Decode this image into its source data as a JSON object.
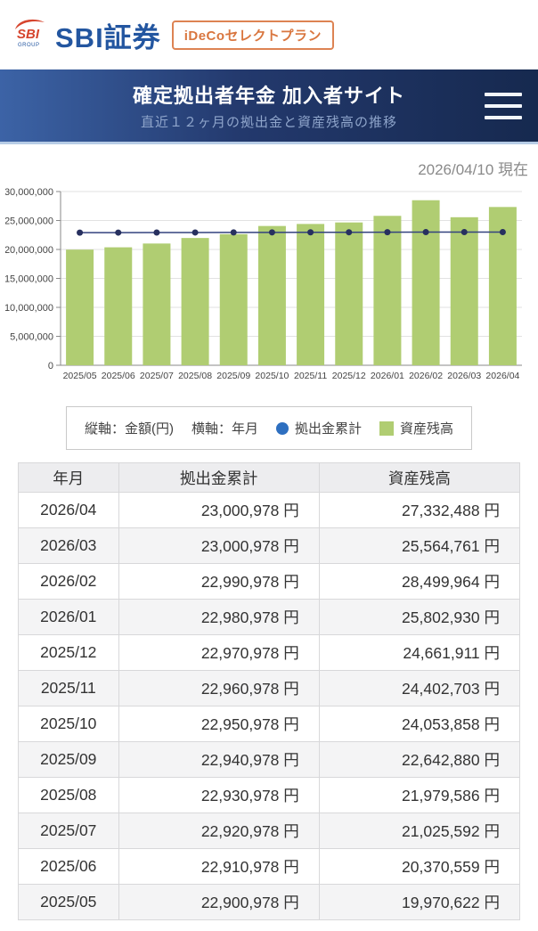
{
  "topbar": {
    "logo_icon": {
      "sbi": "SBI",
      "group": "GROUP"
    },
    "brand": "SBI証券",
    "badge": "iDeCoセレクトプラン"
  },
  "header": {
    "title": "確定拠出者年金 加入者サイト",
    "subtitle": "直近１２ヶ月の拠出金と資産残高の推移"
  },
  "as_of": "2026/04/10 現在",
  "chart_data": {
    "type": "bar",
    "title": "直近１２ヶ月の拠出金と資産残高の推移",
    "xlabel": "年月",
    "ylabel": "金額(円)",
    "categories": [
      "2025/05",
      "2025/06",
      "2025/07",
      "2025/08",
      "2025/09",
      "2025/10",
      "2025/11",
      "2025/12",
      "2026/01",
      "2026/02",
      "2026/03",
      "2026/04"
    ],
    "series": [
      {
        "name": "拠出金累計",
        "type": "line",
        "color": "#33427e",
        "marker_color": "#27305f",
        "values": [
          22900978,
          22910978,
          22920978,
          22930978,
          22940978,
          22950978,
          22960978,
          22970978,
          22980978,
          22990978,
          23000978,
          23000978
        ]
      },
      {
        "name": "資産残高",
        "type": "bar",
        "color": "#b0cd72",
        "values": [
          19970622,
          20370559,
          21025592,
          21979586,
          22642880,
          24053858,
          24402703,
          24661911,
          25802930,
          28499964,
          25564761,
          27332488
        ]
      }
    ],
    "ylim": [
      0,
      30000000
    ],
    "ytick_step": 5000000,
    "grid": true,
    "legend_position": "bottom"
  },
  "legend": {
    "vaxis": "縦軸：金額(円)",
    "haxis": "横軸：年月",
    "line_label": "拠出金累計",
    "bar_label": "資産残高",
    "line_marker_color": "#2e6fc0",
    "bar_marker_color": "#b0cd72"
  },
  "table": {
    "columns": [
      "年月",
      "拠出金累計",
      "資産残高"
    ],
    "rows": [
      [
        "2026/04",
        "23,000,978 円",
        "27,332,488 円"
      ],
      [
        "2026/03",
        "23,000,978 円",
        "25,564,761 円"
      ],
      [
        "2026/02",
        "22,990,978 円",
        "28,499,964 円"
      ],
      [
        "2026/01",
        "22,980,978 円",
        "25,802,930 円"
      ],
      [
        "2025/12",
        "22,970,978 円",
        "24,661,911 円"
      ],
      [
        "2025/11",
        "22,960,978 円",
        "24,402,703 円"
      ],
      [
        "2025/10",
        "22,950,978 円",
        "24,053,858 円"
      ],
      [
        "2025/09",
        "22,940,978 円",
        "22,642,880 円"
      ],
      [
        "2025/08",
        "22,930,978 円",
        "21,979,586 円"
      ],
      [
        "2025/07",
        "22,920,978 円",
        "21,025,592 円"
      ],
      [
        "2025/06",
        "22,910,978 円",
        "20,370,559 円"
      ],
      [
        "2025/05",
        "22,900,978 円",
        "19,970,622 円"
      ]
    ]
  }
}
